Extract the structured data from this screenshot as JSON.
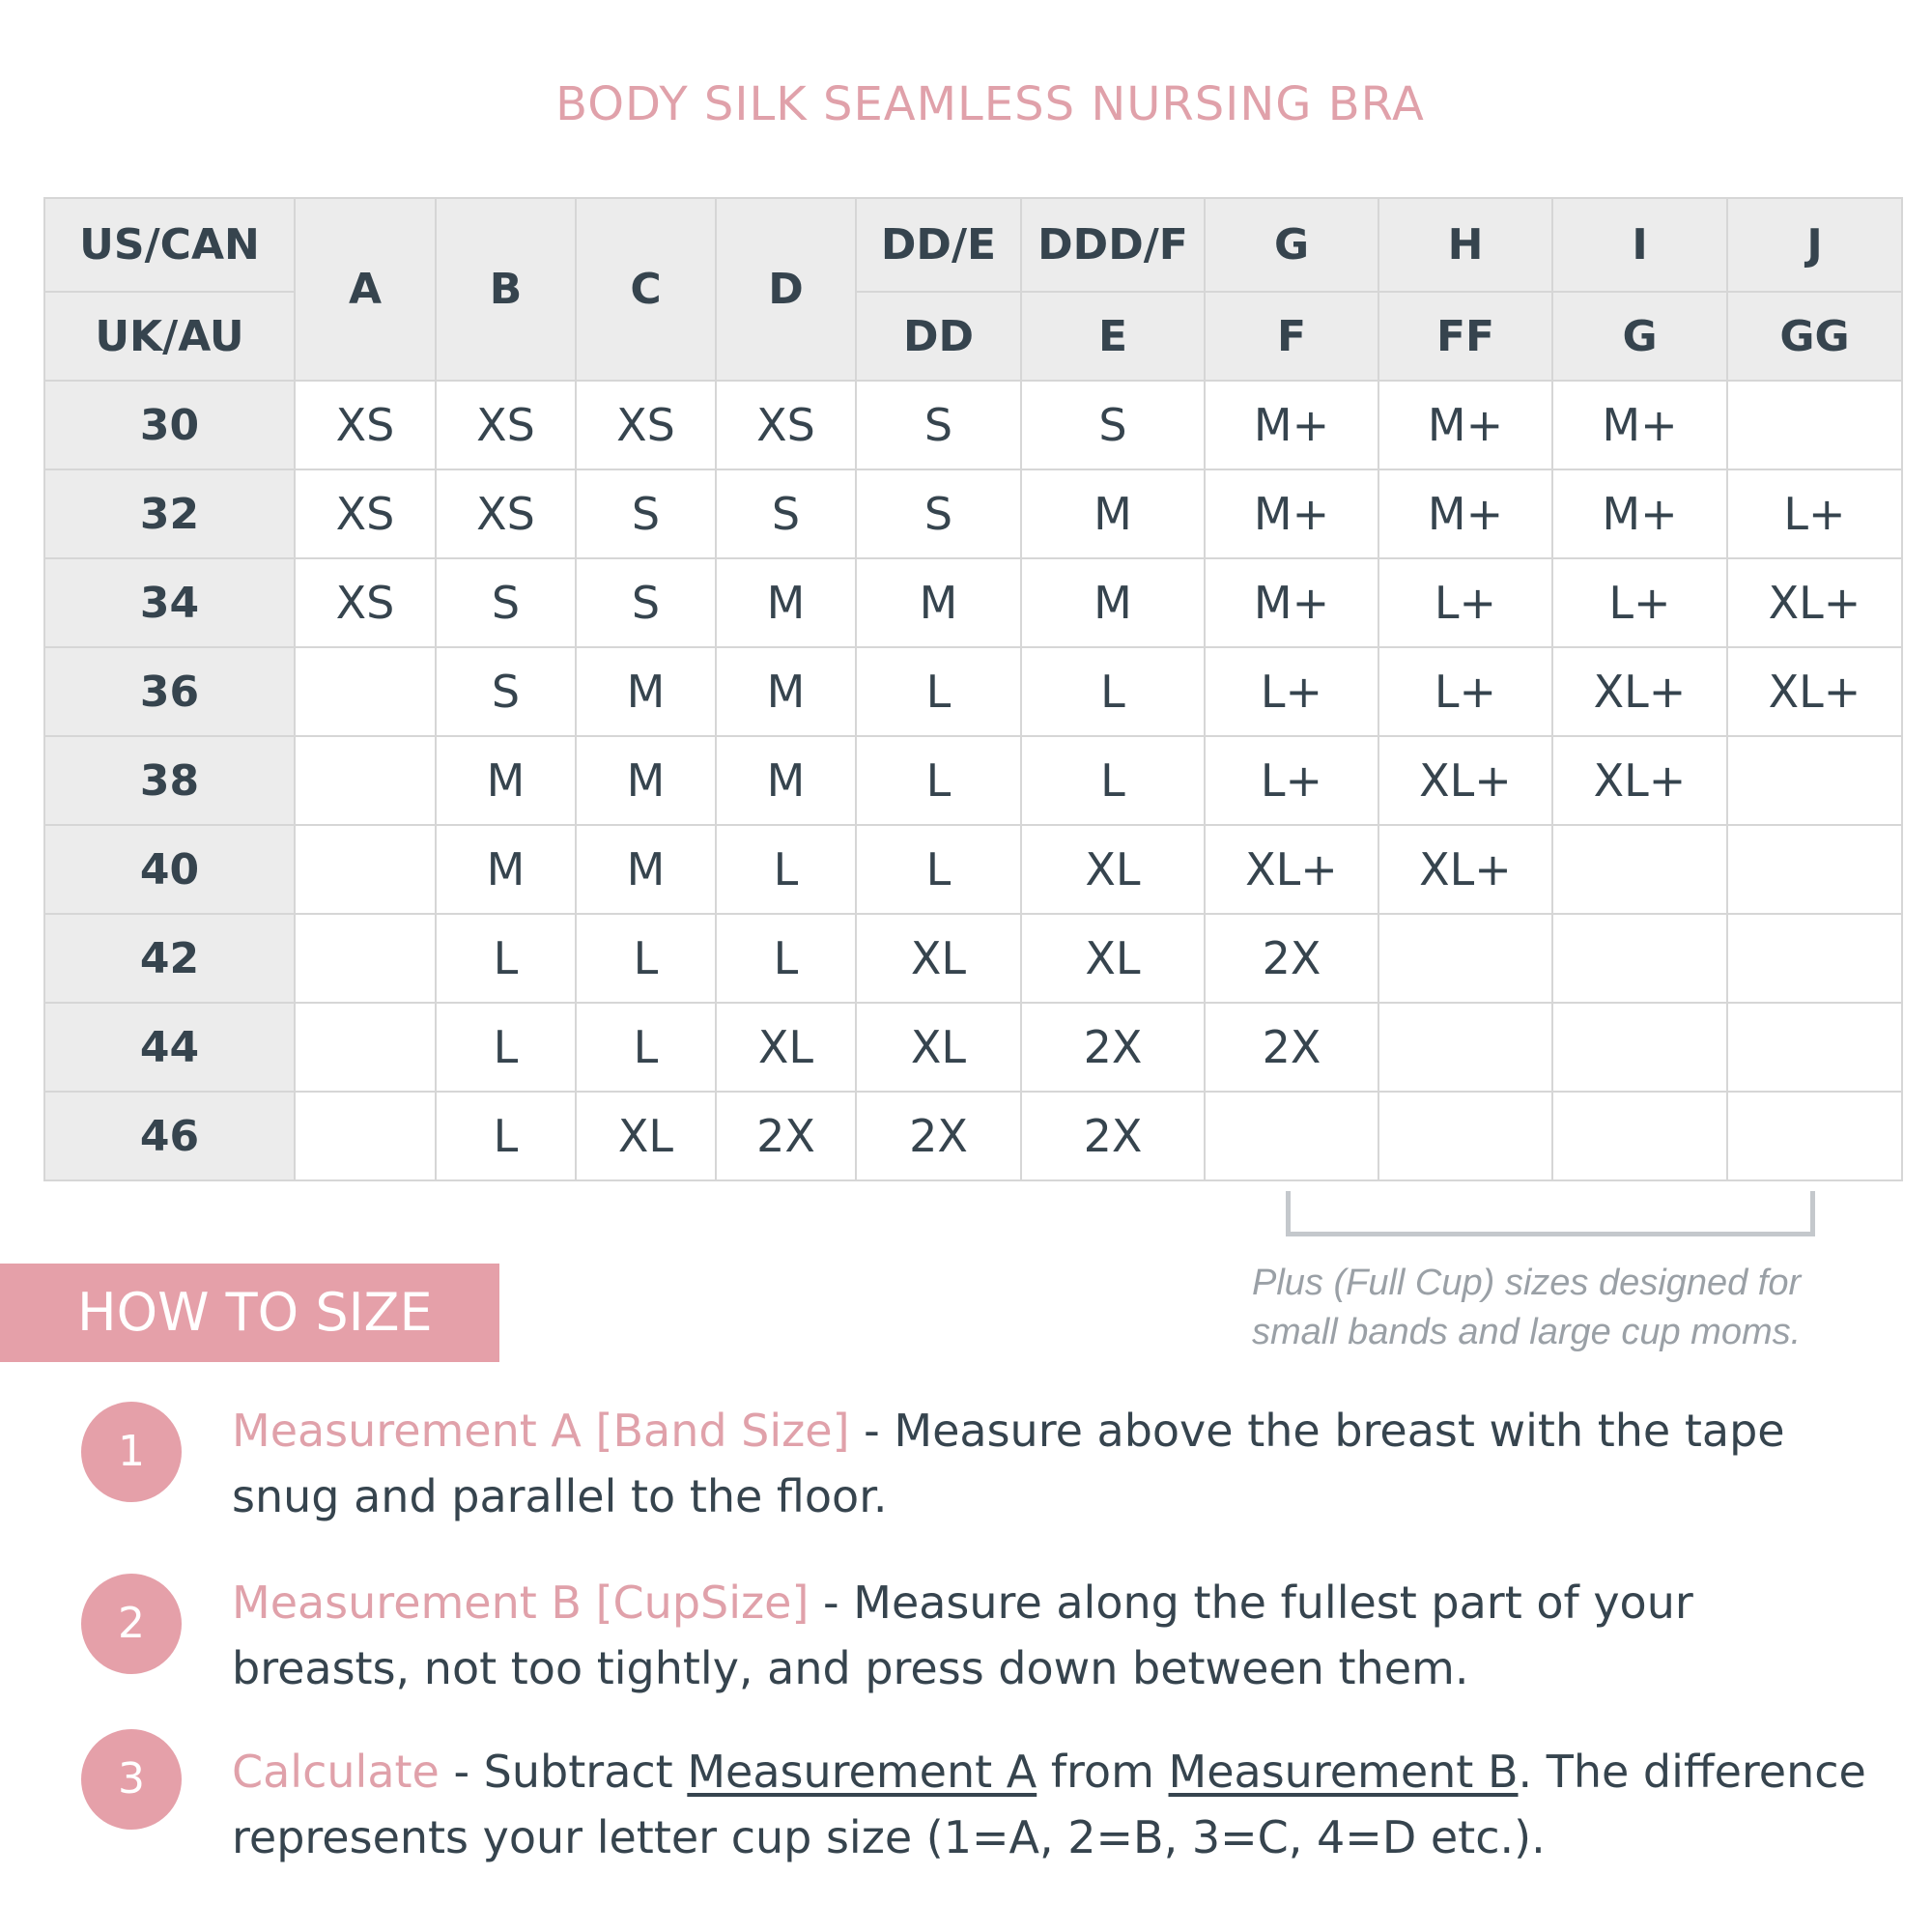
{
  "title": "BODY SILK SEAMLESS NURSING BRA",
  "table": {
    "header_us_label": "US/CAN",
    "header_uk_label": "UK/AU",
    "us_cups": [
      "A",
      "B",
      "C",
      "D",
      "DD/E",
      "DDD/F",
      "G",
      "H",
      "I",
      "J"
    ],
    "uk_cups": [
      "",
      "",
      "",
      "",
      "DD",
      "E",
      "F",
      "FF",
      "G",
      "GG"
    ],
    "rows": [
      {
        "band": "30",
        "sizes": [
          "XS",
          "XS",
          "XS",
          "XS",
          "S",
          "S",
          "M+",
          "M+",
          "M+",
          ""
        ]
      },
      {
        "band": "32",
        "sizes": [
          "XS",
          "XS",
          "S",
          "S",
          "S",
          "M",
          "M+",
          "M+",
          "M+",
          "L+"
        ]
      },
      {
        "band": "34",
        "sizes": [
          "XS",
          "S",
          "S",
          "M",
          "M",
          "M",
          "M+",
          "L+",
          "L+",
          "XL+"
        ]
      },
      {
        "band": "36",
        "sizes": [
          "",
          "S",
          "M",
          "M",
          "L",
          "L",
          "L+",
          "L+",
          "XL+",
          "XL+"
        ]
      },
      {
        "band": "38",
        "sizes": [
          "",
          "M",
          "M",
          "M",
          "L",
          "L",
          "L+",
          "XL+",
          "XL+",
          ""
        ]
      },
      {
        "band": "40",
        "sizes": [
          "",
          "M",
          "M",
          "L",
          "L",
          "XL",
          "XL+",
          "XL+",
          "",
          ""
        ]
      },
      {
        "band": "42",
        "sizes": [
          "",
          "L",
          "L",
          "L",
          "XL",
          "XL",
          "2X",
          "",
          "",
          ""
        ]
      },
      {
        "band": "44",
        "sizes": [
          "",
          "L",
          "L",
          "XL",
          "XL",
          "2X",
          "2X",
          "",
          "",
          ""
        ]
      },
      {
        "band": "46",
        "sizes": [
          "",
          "L",
          "XL",
          "2X",
          "2X",
          "2X",
          "",
          "",
          "",
          ""
        ]
      }
    ]
  },
  "note": {
    "line1": "Plus (Full Cup) sizes designed for",
    "line2": "small bands and large cup moms."
  },
  "how_to_size": "HOW TO SIZE",
  "steps": [
    {
      "number": "1",
      "label": "Measurement A [Band Size]",
      "text": " - Measure above the breast with the tape snug and parallel to the floor."
    },
    {
      "number": "2",
      "label": "Measurement B [CupSize]",
      "text": " - Measure along the fullest part of your breasts, not too tightly, and press down between them."
    },
    {
      "number": "3",
      "label": "Calculate",
      "text_a": " - Subtract ",
      "link_a": "Measurement A",
      "text_b": " from ",
      "link_b": "Measurement B",
      "text_c": ". The difference represents your letter cup size (1=A, 2=B, 3=C, 4=D etc.)."
    }
  ],
  "colors": {
    "accent": "#e5a0a9",
    "header_bg": "#ececec",
    "text": "#36444e",
    "note": "#9aa0a6"
  }
}
